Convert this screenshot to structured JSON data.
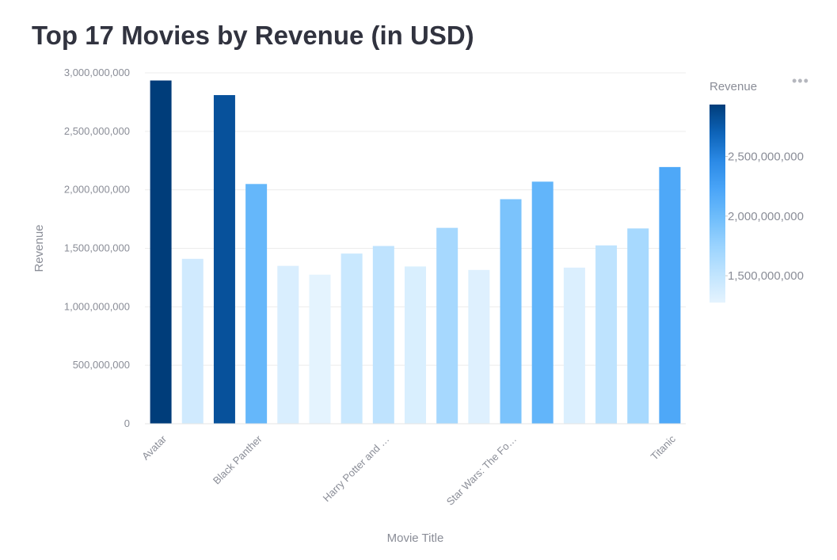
{
  "title": "Top 17 Movies by Revenue (in USD)",
  "menu_icon": "more-horizontal-icon",
  "chart_data": {
    "type": "bar",
    "xlabel": "Movie Title",
    "ylabel": "Revenue",
    "ylim": [
      0,
      3000000000
    ],
    "yticks": [
      0,
      500000000,
      1000000000,
      1500000000,
      2000000000,
      2500000000,
      3000000000
    ],
    "ytick_labels": [
      "0",
      "500,000,000",
      "1,000,000,000",
      "1,500,000,000",
      "2,000,000,000",
      "2,500,000,000",
      "3,000,000,000"
    ],
    "xtick_labels": [
      {
        "index": 0,
        "label": "Avatar"
      },
      {
        "index": 3,
        "label": "Black Panther"
      },
      {
        "index": 7,
        "label": "Harry Potter and …"
      },
      {
        "index": 11,
        "label": "Star Wars: The Fo…"
      },
      {
        "index": 16,
        "label": "Titanic"
      }
    ],
    "values": [
      2935000000,
      1410000000,
      2810000000,
      2050000000,
      1350000000,
      1275000000,
      1455000000,
      1520000000,
      1345000000,
      1675000000,
      1315000000,
      1920000000,
      2070000000,
      1335000000,
      1525000000,
      1670000000,
      2195000000
    ],
    "grid": true,
    "legend": {
      "title": "Revenue",
      "placement": "right",
      "domain": [
        1275000000,
        2935000000
      ],
      "ticks": [
        1500000000,
        2000000000,
        2500000000
      ],
      "tick_labels": [
        "1,500,000,000",
        "2,000,000,000",
        "2,500,000,000"
      ],
      "colors": [
        "#e4f3fe",
        "#c0e4fe",
        "#9ad3fe",
        "#6fbdfb",
        "#4aa5f8",
        "#2b8ae6",
        "#0d63b8",
        "#003d7a"
      ]
    }
  }
}
